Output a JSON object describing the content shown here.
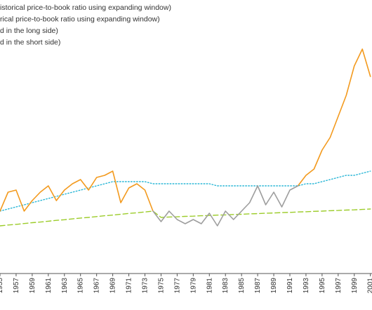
{
  "chart_data": {
    "type": "line",
    "x": [
      1955,
      1956,
      1957,
      1958,
      1959,
      1960,
      1961,
      1962,
      1963,
      1964,
      1965,
      1966,
      1967,
      1968,
      1969,
      1970,
      1971,
      1972,
      1973,
      1974,
      1975,
      1976,
      1977,
      1978,
      1979,
      1980,
      1981,
      1982,
      1983,
      1984,
      1985,
      1986,
      1987,
      1988,
      1989,
      1990,
      1991,
      1992,
      1993,
      1994,
      1995,
      1996,
      1997,
      1998,
      1999,
      2000,
      2001
    ],
    "xlim": [
      1955,
      2001.2
    ],
    "xticks": [
      1955,
      1957,
      1959,
      1961,
      1963,
      1965,
      1967,
      1969,
      1971,
      1973,
      1975,
      1977,
      1979,
      1981,
      1983,
      1985,
      1987,
      1989,
      1991,
      1993,
      1995,
      1997,
      1999,
      2001
    ],
    "ylim": [
      0,
      120
    ],
    "series": [
      {
        "name": "istorical price-to-book ratio using expanding window)",
        "color": "#29b6d6",
        "style": "dotted",
        "values": [
          33,
          34,
          35,
          36,
          37,
          38,
          39,
          40,
          41,
          42,
          43,
          44,
          45,
          46,
          47,
          47,
          47,
          47,
          47,
          46,
          46,
          46,
          46,
          46,
          46,
          46,
          46,
          45,
          45,
          45,
          45,
          45,
          45,
          45,
          45,
          45,
          45,
          45,
          46,
          46,
          47,
          48,
          49,
          50,
          50,
          51,
          52
        ]
      },
      {
        "name": "rical price-to-book ratio using expanding window)",
        "color": "#9ccc2a",
        "style": "dashed",
        "values": [
          26,
          26.4,
          26.7,
          27.1,
          27.5,
          27.8,
          28.2,
          28.6,
          28.9,
          29.3,
          29.7,
          30,
          30.4,
          30.8,
          31.1,
          31.5,
          31.9,
          32.2,
          32.6,
          33,
          30,
          30.2,
          30.3,
          30.5,
          30.6,
          30.8,
          30.9,
          31.1,
          31.2,
          31.4,
          31.5,
          31.7,
          31.8,
          32,
          32.1,
          32.3,
          32.4,
          32.6,
          32.7,
          32.9,
          33,
          33.2,
          33.3,
          33.5,
          33.6,
          33.8,
          34
        ]
      },
      {
        "name": "d in the long side)",
        "color": "#f39a1e",
        "style": "solid",
        "values": [
          33,
          42,
          43,
          33,
          38,
          42,
          45,
          38,
          43,
          46,
          48,
          43,
          49,
          50,
          52,
          37,
          44,
          46,
          43,
          33,
          null,
          null,
          null,
          null,
          null,
          null,
          null,
          null,
          null,
          null,
          null,
          null,
          null,
          null,
          null,
          null,
          null,
          45,
          50,
          53,
          62,
          68,
          78,
          88,
          102,
          110,
          97
        ]
      },
      {
        "name": "d in the short side)",
        "color": "#9e9e9e",
        "style": "solid",
        "values": [
          null,
          null,
          null,
          null,
          null,
          null,
          null,
          null,
          null,
          null,
          null,
          null,
          null,
          null,
          null,
          null,
          null,
          null,
          null,
          33,
          28,
          33,
          29,
          27,
          29,
          27,
          32,
          26,
          33,
          29,
          33,
          37,
          45,
          36,
          42,
          35,
          43,
          45,
          null,
          null,
          null,
          null,
          null,
          null,
          null,
          null,
          null
        ]
      }
    ]
  }
}
